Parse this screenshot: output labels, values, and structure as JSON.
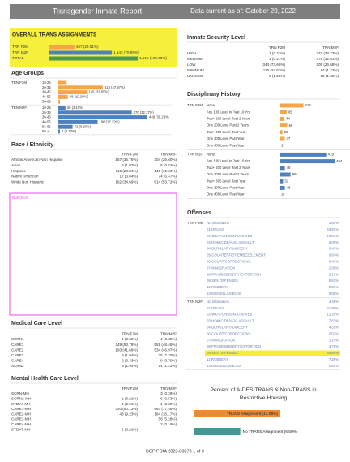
{
  "header": {
    "title": "Transgender Inmate Report",
    "subtitle": "Data current as of: October 29, 2022"
  },
  "overall": {
    "title": "OVERALL TRANS ASSIGNMENTS",
    "rows": [
      {
        "label": "TRN F2M",
        "value": 467,
        "value_label": "467 (29.01%)",
        "color": "#f5a54a"
      },
      {
        "label": "TRN M2F",
        "value": 1143,
        "value_label": "1,143 (70.99%)",
        "color": "#4e81bd"
      },
      {
        "label": "TOTAL",
        "value": 1610,
        "value_label": "1,610 (100.00%)",
        "color": "#4f9a4a"
      }
    ]
  },
  "age_groups": {
    "title": "Age Groups",
    "groups": [
      {
        "name": "TRN F2M",
        "color": "#f5a54a",
        "categories": [
          "18-25",
          "26-35",
          "36-45",
          "46-55",
          "56-65"
        ],
        "values": [
          42,
          224,
          145,
          48,
          8
        ],
        "value_labels": [
          null,
          "224 (47.97%)",
          "145 (31.05%)",
          "48 (10.28%)",
          null
        ]
      },
      {
        "name": "TRN M2F",
        "color": "#4e81bd",
        "categories": [
          "18-25",
          "26-35",
          "36-45",
          "46-55",
          "56-65",
          "66 +"
        ],
        "values": [
          36,
          370,
          449,
          198,
          72,
          8
        ],
        "value_labels": [
          "36 (3.15%)",
          "370 (32.37%)",
          "449 (39.28%)",
          "198 (17.32%)",
          "72 (6.30%)",
          "8 (0.70%)"
        ]
      }
    ]
  },
  "race": {
    "title": "Race / Ethnicity",
    "columns": [
      "TRN F2M",
      "TRN M2F"
    ],
    "rows": [
      [
        "African American-Non Hispanic",
        "167 (35.76%)",
        "304 (26.60%)"
      ],
      [
        "Asian",
        "5 (1.07%)",
        "6 (0.52%)"
      ],
      [
        "Hispanic",
        "116 (24.84%)",
        "145 (12.69%)"
      ],
      [
        "Native American",
        "17 (3.64%)",
        "74 (6.47%)"
      ],
      [
        "White Non Hispanic",
        "162 (34.69%)",
        "614 (53.72%)"
      ]
    ]
  },
  "null_box": {
    "label": "Null (Null)"
  },
  "medical": {
    "title": "Medical Care Level",
    "columns": [
      "TRN F2M",
      "TRN M2F"
    ],
    "rows": [
      [
        "SCRN1",
        "1 (0.22%)",
        "4 (0.35%)"
      ],
      [
        "CARE1",
        "249 (53.78%)",
        "551 (48.46%)"
      ],
      [
        "CARE2",
        "193 (41.68%)",
        "534 (46.97%)"
      ],
      [
        "CARE3",
        "9 (1.94%)",
        "25 (2.20%)"
      ],
      [
        "CARE4",
        "2 (0.43%)",
        "9 (0.79%)"
      ],
      [
        "SCRN2",
        "9 (1.94%)",
        "14 (1.23%)"
      ]
    ]
  },
  "mental": {
    "title": "Mental Health Care Level",
    "columns": [
      "TRN F2M",
      "TRN M2F"
    ],
    "rows": [
      [
        "SCRN-MH",
        null,
        "3 (0.26%)"
      ],
      [
        "SCRN2-MH",
        "1 (0.21%)",
        "6 (0.53%)"
      ],
      [
        "STDY4-MH",
        "1 (0.21%)",
        "1 (0.09%)"
      ],
      [
        "CARE1-MH",
        "420 (90.13%)",
        "883 (77.46%)"
      ],
      [
        "CARE2-MH",
        "43 (9.23%)",
        "184 (16.17%)"
      ],
      [
        "CARE3-MH",
        null,
        "58 (5.28%)"
      ],
      [
        "CARE4-MH",
        null,
        "2 (0.18%)"
      ],
      [
        "STDY3-MH",
        "1 (0.21%)",
        null
      ]
    ]
  },
  "security": {
    "title": "Inmate Security Level",
    "columns": [
      "TRN F2M",
      "TRN M2F"
    ],
    "rows": [
      [
        "HIGH",
        "1 (0.21%)",
        "437 (38.23%)"
      ],
      [
        "MEDIUM",
        "1 (0.21%)",
        "375 (32.81%)"
      ],
      [
        "LOW",
        "344 (73.66%)",
        "305 (26.68%)"
      ],
      [
        "MINIMUM",
        "115 (24.63%)",
        "14 (1.22%)"
      ],
      [
        "UNASSG",
        "6 (1.28%)",
        "12 (1.05%)"
      ]
    ]
  },
  "disciplinary": {
    "title": "Disciplinary History",
    "groups": [
      {
        "name": "TRN F2M",
        "color": "#f5a54a",
        "categories": [
          "None",
          "Any 100 Level in Past 10 Yrs",
          "Two+ 200 Level Past 2 Years",
          "One 200 Level Past 2 Years",
          "Two+ 300 Level Past Year",
          "One 300 Level Past Year",
          "One 400 Level Past Year"
        ],
        "values": [
          214,
          65,
          44,
          69,
          26,
          47,
          2
        ]
      },
      {
        "name": "TRN M2F",
        "color": "#4e81bd",
        "categories": [
          "None",
          "Any 100 Level in Past 10 Yrs",
          "Two+ 200 Level Past 2 Years",
          "One 200 Level Past 2 Years",
          "Two+ 300 Level Past Year",
          "One 300 Level Past Year",
          "One 400 Level Past Year"
        ],
        "values": [
          419,
          494,
          48,
          99,
          32,
          48,
          3
        ]
      }
    ]
  },
  "offenses": {
    "title": "Offenses",
    "highlight_color": "#f4ee3a",
    "groups": [
      {
        "name": "TRN F2M",
        "highlight_row": null,
        "rows": [
          [
            "No Information",
            "3.85%"
          ],
          [
            "01-DRUGS",
            "53.53%"
          ],
          [
            "02-WEAPONS/EXPLOSIVES",
            "15.63%"
          ],
          [
            "03-HOMICIDE/AGG ASSAULT",
            "6.00%"
          ],
          [
            "04-BURGLARY/LARCENY",
            "3.43%"
          ],
          [
            "05-COUNTERFEIT/EMBEZZLEMENT",
            "0.64%"
          ],
          [
            "06-COURT/CORRECTIONS",
            "0.43%"
          ],
          [
            "07-IMMIGRATION",
            "2.36%"
          ],
          [
            "08-FRAUD/BRIBERY/EXTORTION",
            "5.14%"
          ],
          [
            "09-SEX OFFENSES",
            "5.57%"
          ],
          [
            "11-ROBBERY",
            "2.57%"
          ],
          [
            "13-MISCELLANEOUS",
            "0.86%"
          ]
        ]
      },
      {
        "name": "TRN M2F",
        "highlight_row": 8,
        "rows": [
          [
            "No Information",
            "4.46%"
          ],
          [
            "01-DRUGS",
            "11.90%"
          ],
          [
            "02-WEAPONS/EXPLOSIVES",
            "12.25%"
          ],
          [
            "03-HOMICIDE/AGG ASSAULT",
            "7.61%"
          ],
          [
            "04-BURGLARY/LARCENY",
            "4.55%"
          ],
          [
            "06-COURT/CORRECTIONS",
            "0.52%"
          ],
          [
            "07-IMMIGRATION",
            "1.14%"
          ],
          [
            "08-FRAUD/BRIBERY/EXTORTION",
            "3.76%"
          ],
          [
            "09-SEX OFFENSES",
            "45.80%"
          ],
          [
            "11-ROBBERY",
            "7.26%"
          ],
          [
            "13-MISCELLANEOUS",
            "0.61%"
          ]
        ]
      }
    ]
  },
  "restrictive": {
    "title": [
      "Percent of A-DES TRANS & Non-TRANS in",
      "Restrictive Housing"
    ],
    "values": [
      12.06,
      6.5
    ],
    "value_labels": [
      "TRANS Assignment (12.06%)",
      "No TRANS Assignment (6.50%)"
    ],
    "colors": [
      "#f08a2c",
      "#3f9a93"
    ]
  },
  "footer": "BOP FOIA 2023-00873 1 of 3"
}
